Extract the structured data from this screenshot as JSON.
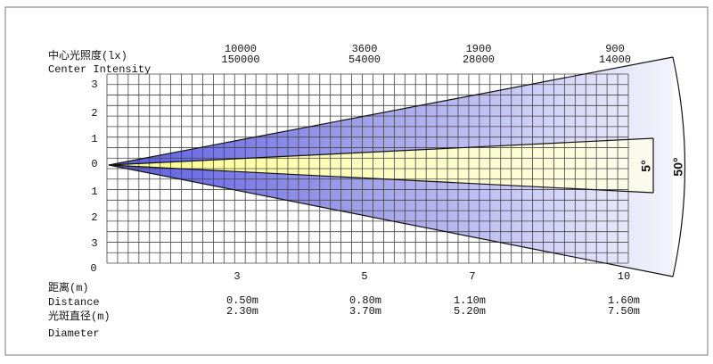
{
  "intensity_label_cn": "中心光照度(lx)",
  "intensity_label_en": "Center Intensity",
  "y_labels": [
    "3",
    "2",
    "1",
    "0",
    "1",
    "2",
    "3"
  ],
  "corner_label": "0",
  "distance_label_cn": "距离(m)",
  "distance_label_en": "Distance",
  "diameter_label_cn": "光斑直径(m)",
  "diameter_label_en": "Diameter",
  "columns": [
    {
      "intensity": [
        "10000",
        "150000"
      ],
      "distance": "3",
      "diameter": [
        "0.50m",
        "2.30m"
      ]
    },
    {
      "intensity": [
        "3600",
        "54000"
      ],
      "distance": "5",
      "diameter": [
        "0.80m",
        "3.70m"
      ]
    },
    {
      "intensity": [
        "1900",
        "28000"
      ],
      "distance": "7",
      "diameter": [
        "1.10m",
        "5.20m"
      ]
    },
    {
      "intensity": [
        "900",
        "14000"
      ],
      "distance": "10",
      "diameter": [
        "1.60m",
        "7.50m"
      ]
    }
  ],
  "angles": {
    "narrow": "5°",
    "wide": "50°"
  }
}
